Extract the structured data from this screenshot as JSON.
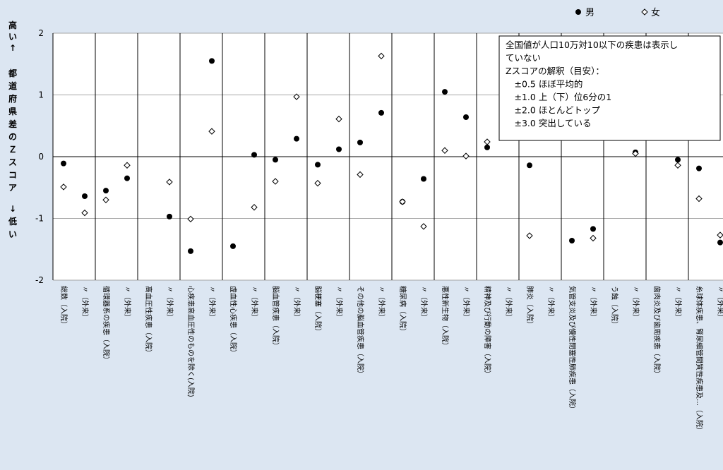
{
  "chart_data": {
    "type": "scatter",
    "ylabel_top": "高い↑",
    "ylabel_main": "都道府県差のＺスコア",
    "ylabel_bottom": "↓低い",
    "ylim": [
      -2,
      2
    ],
    "yticks": [
      "2",
      "1",
      "0",
      "-1",
      "-2"
    ],
    "categories": [
      "総数（入院）",
      "〃（外来）",
      "循環器系の疾患（入院）",
      "〃（外来）",
      "高血圧性疾患（入院）",
      "〃（外来）",
      "心疾患高血圧性のものを除く(入院)",
      "〃（外来）",
      "虚血性心疾患（入院）",
      "〃（外来）",
      "脳血管疾患（入院）",
      "〃（外来）",
      "脳梗塞（入院）",
      "〃（外来）",
      "その他の脳血管疾患（入院）",
      "〃（外来）",
      "糖尿病（入院）",
      "〃（外来）",
      "悪性新生物（入院）",
      "〃（外来）",
      "精神及び行動の障害（入院）",
      "〃（外来）",
      "肺炎（入院）",
      "〃（外来）",
      "気管支炎及び慢性閉塞性肺疾患（入院）",
      "〃（外来）",
      "う蝕（入院）",
      "〃（外来）",
      "歯肉炎及び歯周疾患（入院）",
      "〃（外来）",
      "糸球体疾患、腎尿細管間質性疾患及…（入院）",
      "〃（外来）"
    ],
    "series": [
      {
        "name": "男",
        "marker": "filled-circle",
        "color": "#000000",
        "values": [
          -0.11,
          -0.64,
          -0.55,
          -0.35,
          null,
          -0.97,
          -1.53,
          1.55,
          -1.45,
          0.03,
          -0.05,
          0.29,
          -0.13,
          0.12,
          0.23,
          0.71,
          -0.73,
          -0.36,
          1.05,
          0.64,
          0.15,
          null,
          -0.14,
          null,
          -1.36,
          -1.17,
          null,
          0.07,
          null,
          -0.05,
          -0.19,
          -1.39
        ]
      },
      {
        "name": "女",
        "marker": "open-diamond",
        "color": "#000000",
        "values": [
          -0.49,
          -0.91,
          -0.7,
          -0.14,
          null,
          -0.41,
          -1.01,
          0.41,
          null,
          -0.82,
          -0.4,
          0.97,
          -0.43,
          0.61,
          -0.29,
          1.63,
          -0.73,
          -1.13,
          0.1,
          0.01,
          0.24,
          null,
          -1.28,
          null,
          null,
          -1.32,
          null,
          0.05,
          null,
          -0.14,
          -0.68,
          -1.27
        ]
      }
    ],
    "legend": {
      "position": "top-right"
    },
    "annotation": [
      "全国値が人口10万対10以下の疾患は表示し",
      "ていない",
      "Zスコアの解釈（目安）：",
      "　±0.5 ほぼ平均的",
      "　±1.0 上（下）位6分の1",
      "　±2.0 ほとんどトップ",
      "　±3.0 突出している"
    ],
    "grid": {
      "horizontal": true,
      "vertical_separators": true
    }
  }
}
